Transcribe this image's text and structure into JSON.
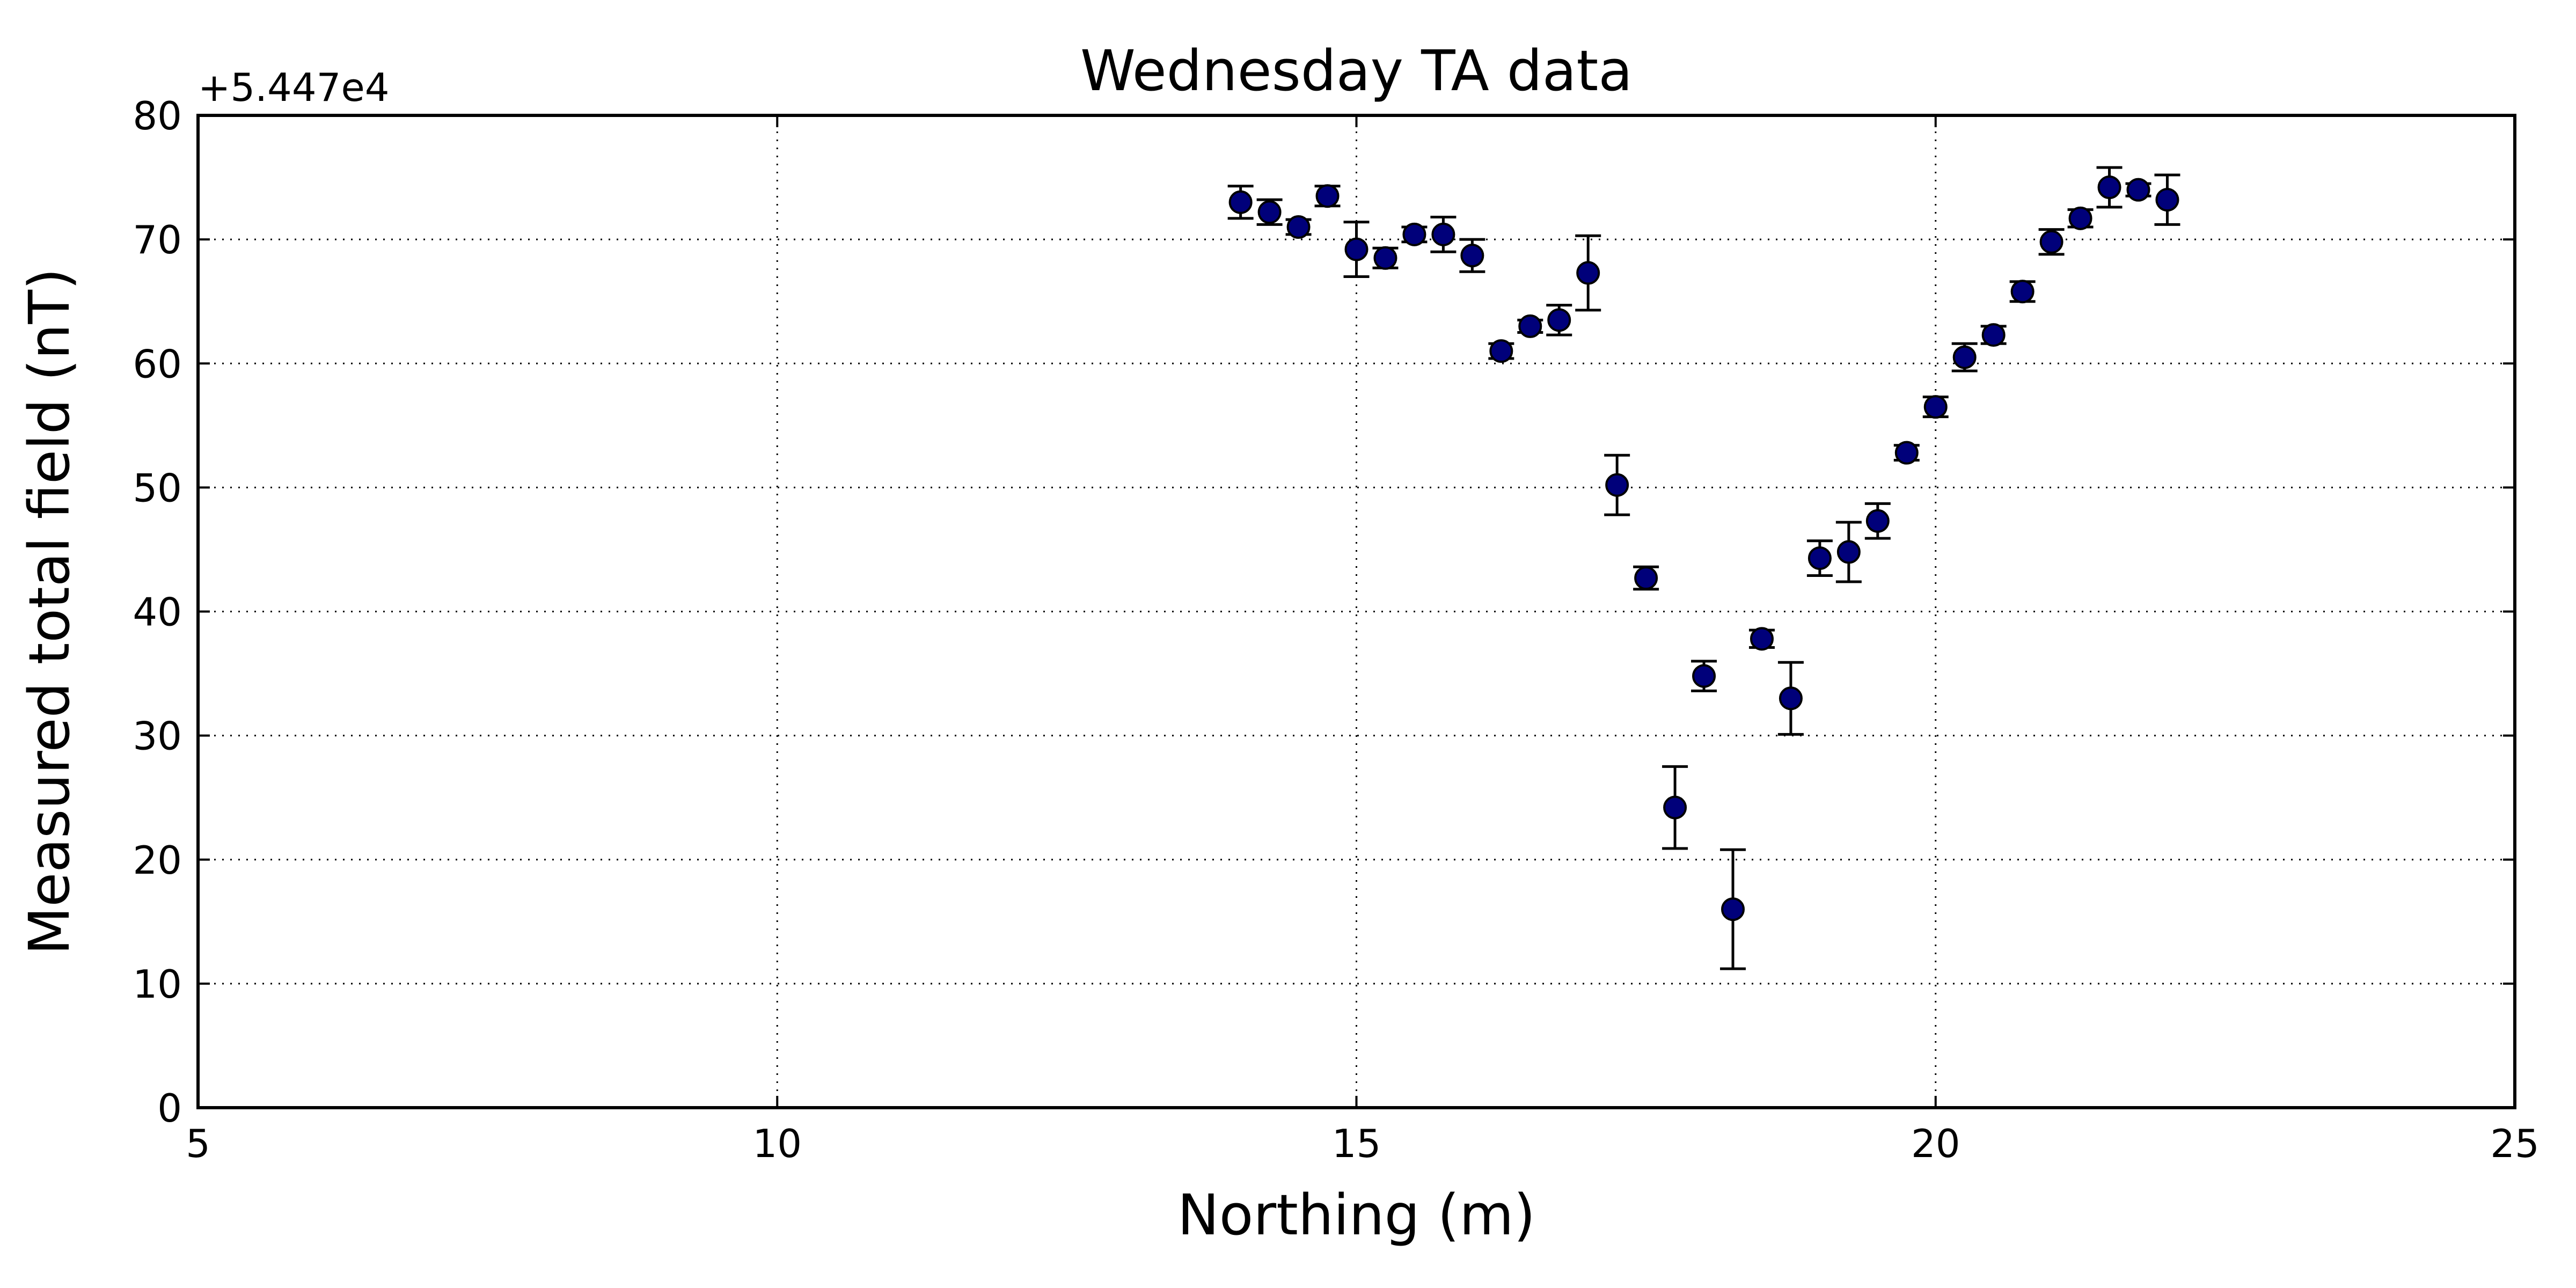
{
  "chart_data": {
    "type": "scatter",
    "title": "Wednesday TA data",
    "xlabel": "Northing (m)",
    "ylabel": "Measured total field (nT)",
    "y_offset_label": "+5.447e4",
    "xlim": [
      5,
      25
    ],
    "ylim": [
      0,
      80
    ],
    "xticks": [
      5,
      10,
      15,
      20,
      25
    ],
    "yticks": [
      0,
      10,
      20,
      30,
      40,
      50,
      60,
      70,
      80
    ],
    "xtick_labels": [
      "5",
      "10",
      "15",
      "20",
      "25"
    ],
    "ytick_labels": [
      "0",
      "10",
      "20",
      "30",
      "40",
      "50",
      "60",
      "70",
      "80"
    ],
    "grid": true,
    "marker_color": "#00007a",
    "points": [
      {
        "x": 14.0,
        "y": 73.0,
        "err": 1.3
      },
      {
        "x": 14.25,
        "y": 72.2,
        "err": 1.0
      },
      {
        "x": 14.5,
        "y": 71.0,
        "err": 0.6
      },
      {
        "x": 14.75,
        "y": 73.5,
        "err": 0.8
      },
      {
        "x": 15.0,
        "y": 69.2,
        "err": 2.2
      },
      {
        "x": 15.25,
        "y": 68.5,
        "err": 0.8
      },
      {
        "x": 15.5,
        "y": 70.4,
        "err": 0.6
      },
      {
        "x": 15.75,
        "y": 70.4,
        "err": 1.4
      },
      {
        "x": 16.0,
        "y": 68.7,
        "err": 1.3
      },
      {
        "x": 16.25,
        "y": 61.0,
        "err": 0.6
      },
      {
        "x": 16.5,
        "y": 63.0,
        "err": 0.5
      },
      {
        "x": 16.75,
        "y": 63.5,
        "err": 1.2
      },
      {
        "x": 17.0,
        "y": 67.3,
        "err": 3.0
      },
      {
        "x": 17.25,
        "y": 50.2,
        "err": 2.4
      },
      {
        "x": 17.5,
        "y": 42.7,
        "err": 0.9
      },
      {
        "x": 17.75,
        "y": 24.2,
        "err": 3.3
      },
      {
        "x": 18.0,
        "y": 34.8,
        "err": 1.2
      },
      {
        "x": 18.25,
        "y": 16.0,
        "err": 4.8
      },
      {
        "x": 18.5,
        "y": 37.8,
        "err": 0.7
      },
      {
        "x": 18.75,
        "y": 33.0,
        "err": 2.9
      },
      {
        "x": 19.0,
        "y": 44.3,
        "err": 1.4
      },
      {
        "x": 19.25,
        "y": 44.8,
        "err": 2.4
      },
      {
        "x": 19.5,
        "y": 47.3,
        "err": 1.4
      },
      {
        "x": 19.75,
        "y": 52.8,
        "err": 0.6
      },
      {
        "x": 20.0,
        "y": 56.5,
        "err": 0.8
      },
      {
        "x": 20.25,
        "y": 60.5,
        "err": 1.1
      },
      {
        "x": 20.5,
        "y": 62.3,
        "err": 0.7
      },
      {
        "x": 20.75,
        "y": 65.8,
        "err": 0.8
      },
      {
        "x": 21.0,
        "y": 69.8,
        "err": 1.0
      },
      {
        "x": 21.25,
        "y": 71.7,
        "err": 0.7
      },
      {
        "x": 21.5,
        "y": 74.2,
        "err": 1.6
      },
      {
        "x": 21.75,
        "y": 74.0,
        "err": 0.5
      },
      {
        "x": 22.0,
        "y": 73.2,
        "err": 2.0
      }
    ]
  }
}
